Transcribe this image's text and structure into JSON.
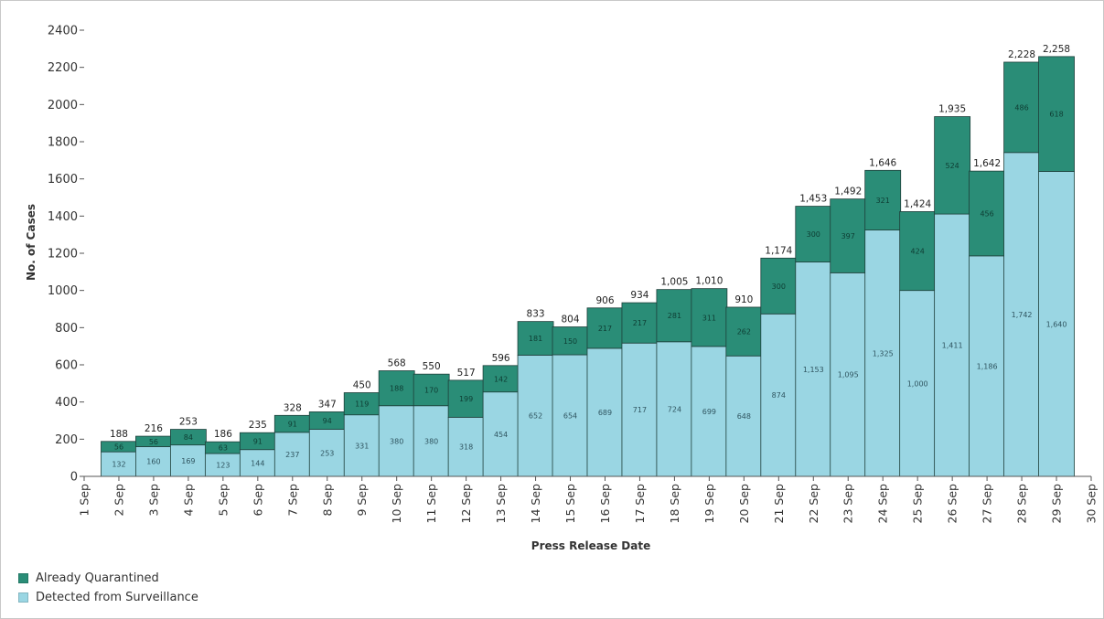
{
  "colors": {
    "quarantined": "#2a8d77",
    "surveillance": "#9ad6e3",
    "bar_border": "#1e3f3a",
    "axis": "#555555"
  },
  "legend": {
    "items": [
      {
        "label": "Already Quarantined",
        "color": "#2a8d77"
      },
      {
        "label": "Detected from Surveillance",
        "color": "#9ad6e3"
      }
    ]
  },
  "chart_data": {
    "type": "bar",
    "stacked": true,
    "xlabel": "Press Release Date",
    "ylabel": "No. of Cases",
    "ylim": [
      0,
      2400
    ],
    "yticks": [
      0,
      200,
      400,
      600,
      800,
      1000,
      1200,
      1400,
      1600,
      1800,
      2000,
      2200,
      2400
    ],
    "grid": false,
    "legend_position": "bottom-left",
    "x_ticks": [
      "1 Sep",
      "2 Sep",
      "3 Sep",
      "4 Sep",
      "5 Sep",
      "6 Sep",
      "7 Sep",
      "8 Sep",
      "9 Sep",
      "10 Sep",
      "11 Sep",
      "12 Sep",
      "13 Sep",
      "14 Sep",
      "15 Sep",
      "16 Sep",
      "17 Sep",
      "18 Sep",
      "19 Sep",
      "20 Sep",
      "21 Sep",
      "22 Sep",
      "23 Sep",
      "24 Sep",
      "25 Sep",
      "26 Sep",
      "27 Sep",
      "28 Sep",
      "29 Sep",
      "30 Sep"
    ],
    "categories": [
      "2 Sep",
      "3 Sep",
      "4 Sep",
      "5 Sep",
      "6 Sep",
      "7 Sep",
      "8 Sep",
      "9 Sep",
      "10 Sep",
      "11 Sep",
      "12 Sep",
      "13 Sep",
      "14 Sep",
      "15 Sep",
      "16 Sep",
      "17 Sep",
      "18 Sep",
      "19 Sep",
      "20 Sep",
      "21 Sep",
      "22 Sep",
      "23 Sep",
      "24 Sep",
      "25 Sep",
      "26 Sep",
      "27 Sep",
      "28 Sep",
      "29 Sep"
    ],
    "series": [
      {
        "name": "Detected from Surveillance",
        "values": [
          132,
          160,
          169,
          123,
          144,
          237,
          253,
          331,
          380,
          380,
          318,
          454,
          652,
          654,
          689,
          717,
          724,
          699,
          648,
          874,
          1153,
          1095,
          1325,
          1000,
          1411,
          1186,
          1742,
          1640
        ],
        "labels": [
          "132",
          "160",
          "169",
          "123",
          "144",
          "237",
          "253",
          "331",
          "380",
          "380",
          "318",
          "454",
          "652",
          "654",
          "689",
          "717",
          "724",
          "699",
          "648",
          "874",
          "1,153",
          "1,095",
          "1,325",
          "1,000",
          "1,411",
          "1,186",
          "1,742",
          "1,640"
        ]
      },
      {
        "name": "Already Quarantined",
        "values": [
          56,
          56,
          84,
          63,
          91,
          91,
          94,
          119,
          188,
          170,
          199,
          142,
          181,
          150,
          217,
          217,
          281,
          311,
          262,
          300,
          300,
          397,
          321,
          424,
          524,
          456,
          486,
          618
        ],
        "labels": [
          "56",
          "56",
          "84",
          "63",
          "91",
          "91",
          "94",
          "119",
          "188",
          "170",
          "199",
          "142",
          "181",
          "150",
          "217",
          "217",
          "281",
          "311",
          "262",
          "300",
          "300",
          "397",
          "321",
          "424",
          "524",
          "456",
          "486",
          "618"
        ]
      }
    ],
    "totals": [
      "188",
      "216",
      "253",
      "186",
      "235",
      "328",
      "347",
      "450",
      "568",
      "550",
      "517",
      "596",
      "833",
      "804",
      "906",
      "934",
      "1,005",
      "1,010",
      "910",
      "1,174",
      "1,453",
      "1,492",
      "1,646",
      "1,424",
      "1,935",
      "1,642",
      "2,228",
      "2,258"
    ]
  }
}
